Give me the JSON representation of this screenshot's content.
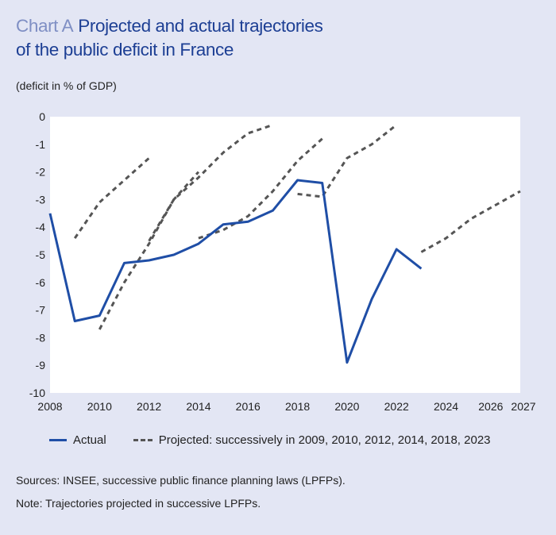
{
  "header": {
    "chart_label": "Chart A",
    "title_line1": "Projected and actual trajectories",
    "title_line2": "of the public deficit in France",
    "unit": "(deficit in % of GDP)"
  },
  "colors": {
    "actual": "#1f4ea6",
    "projected": "#555555",
    "title": "#1d3f94",
    "background": "#e3e6f4"
  },
  "chart_data": {
    "type": "line",
    "title": "Projected and actual trajectories of the public deficit in France",
    "ylabel": "(deficit in % of GDP)",
    "xlim": [
      2008,
      2027
    ],
    "ylim": [
      -10,
      0
    ],
    "x_ticks": [
      "2008",
      "2010",
      "2012",
      "2014",
      "2016",
      "2018",
      "2020",
      "2022",
      "2024",
      "2026",
      "2027"
    ],
    "y_ticks": [
      "0",
      "-1",
      "-2",
      "-3",
      "-4",
      "-5",
      "-6",
      "-7",
      "-8",
      "-9",
      "-10"
    ],
    "grid": false,
    "legend_position": "bottom",
    "series": [
      {
        "name": "Actual",
        "style": "solid",
        "x": [
          2008,
          2009,
          2010,
          2011,
          2012,
          2013,
          2014,
          2015,
          2016,
          2017,
          2018,
          2019,
          2020,
          2021,
          2022,
          2023
        ],
        "values": [
          -3.5,
          -7.4,
          -7.2,
          -5.3,
          -5.2,
          -5.0,
          -4.6,
          -3.9,
          -3.8,
          -3.4,
          -2.3,
          -2.4,
          -8.9,
          -6.6,
          -4.8,
          -5.5
        ]
      },
      {
        "name": "Projected: successively in 2009, 2010, 2012, 2014, 2018, 2023",
        "style": "dashed",
        "trajectories": [
          {
            "vintage": 2009,
            "x": [
              2009,
              2010,
              2011,
              2012
            ],
            "values": [
              -4.4,
              -3.1,
              -2.3,
              -1.5
            ]
          },
          {
            "vintage": 2010,
            "x": [
              2010,
              2011,
              2012,
              2013,
              2014
            ],
            "values": [
              -7.7,
              -6.0,
              -4.6,
              -3.0,
              -2.0
            ]
          },
          {
            "vintage": 2012,
            "x": [
              2012,
              2013,
              2014,
              2015,
              2016,
              2017
            ],
            "values": [
              -4.5,
              -3.0,
              -2.2,
              -1.3,
              -0.6,
              -0.3
            ]
          },
          {
            "vintage": 2014,
            "x": [
              2014,
              2015,
              2016,
              2017,
              2018,
              2019
            ],
            "values": [
              -4.4,
              -4.1,
              -3.6,
              -2.7,
              -1.6,
              -0.8
            ]
          },
          {
            "vintage": 2018,
            "x": [
              2018,
              2019,
              2020,
              2021,
              2022
            ],
            "values": [
              -2.8,
              -2.9,
              -1.5,
              -1.0,
              -0.3
            ]
          },
          {
            "vintage": 2023,
            "x": [
              2023,
              2024,
              2025,
              2026,
              2027
            ],
            "values": [
              -4.9,
              -4.4,
              -3.7,
              -3.2,
              -2.7
            ]
          }
        ]
      }
    ]
  },
  "legend": {
    "actual": "Actual",
    "projected": "Projected: successively in 2009, 2010, 2012, 2014, 2018, 2023"
  },
  "footer": {
    "sources": "Sources: INSEE, successive public finance planning laws (LPFPs).",
    "note": "Note: Trajectories projected in successive LPFPs."
  }
}
